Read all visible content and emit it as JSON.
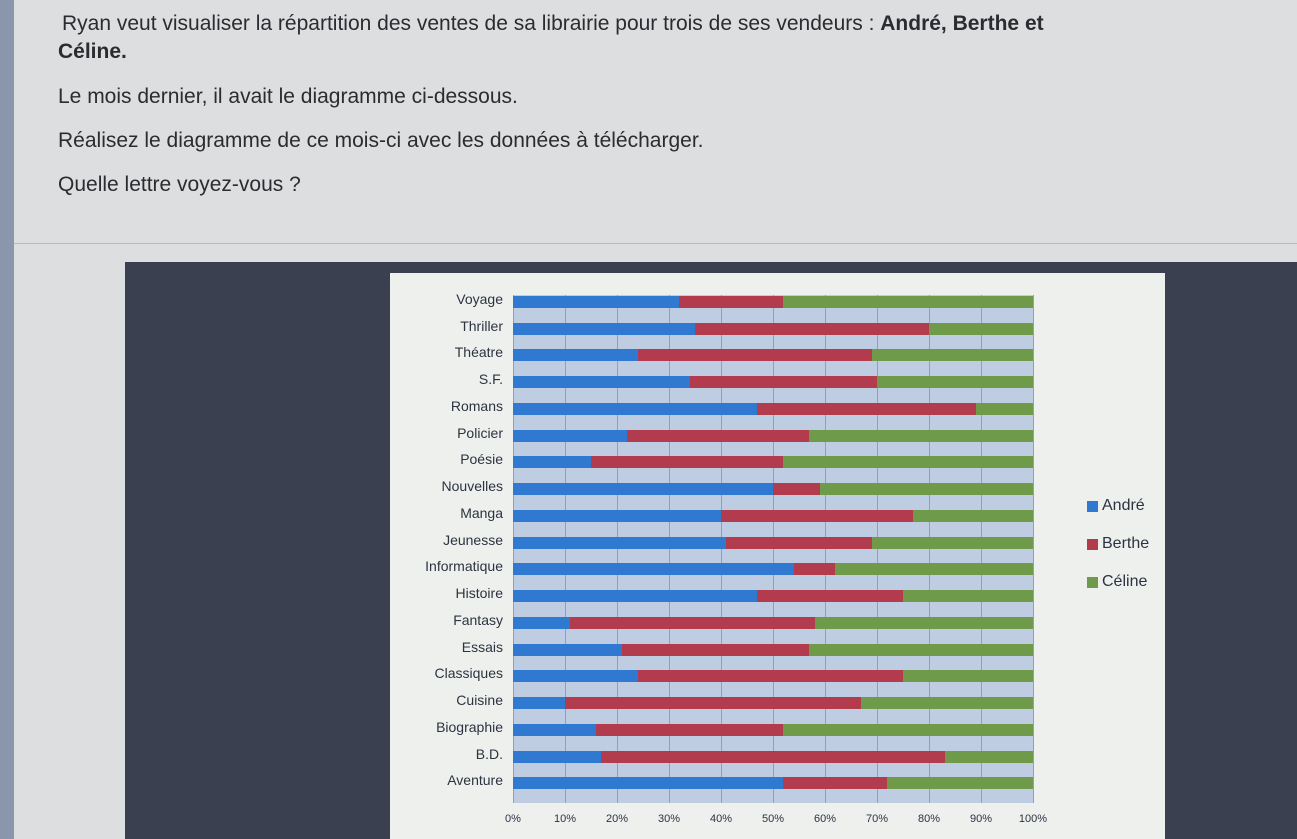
{
  "question": {
    "line1_prefix": "Ryan veut visualiser la répartition des ventes de sa librairie pour trois de ses vendeurs : ",
    "line1_bold": "André, Berthe et",
    "line2_bold": "Céline.",
    "line3": "Le mois dernier, il avait le diagramme ci-dessous.",
    "line4": "Réalisez le diagramme de ce mois-ci avec les données à télécharger.",
    "line5": "Quelle lettre voyez-vous ?"
  },
  "colors": {
    "andre": "#2f7ad0",
    "berthe": "#b23c4d",
    "celine": "#6e9a4a"
  },
  "chart_data": {
    "type": "bar",
    "subtype": "stacked-100-horizontal",
    "title": "",
    "xlabel": "",
    "ylabel": "",
    "xlim": [
      0,
      100
    ],
    "grid": true,
    "legend_position": "right",
    "x_ticks": [
      "0%",
      "10%",
      "20%",
      "30%",
      "40%",
      "50%",
      "60%",
      "70%",
      "80%",
      "90%",
      "100%"
    ],
    "categories": [
      "Voyage",
      "Thriller",
      "Théatre",
      "S.F.",
      "Romans",
      "Policier",
      "Poésie",
      "Nouvelles",
      "Manga",
      "Jeunesse",
      "Informatique",
      "Histoire",
      "Fantasy",
      "Essais",
      "Classiques",
      "Cuisine",
      "Biographie",
      "B.D.",
      "Aventure"
    ],
    "series": [
      {
        "name": "André",
        "values": [
          32,
          35,
          24,
          34,
          47,
          22,
          15,
          50,
          40,
          41,
          54,
          47,
          11,
          21,
          24,
          10,
          16,
          17,
          52
        ]
      },
      {
        "name": "Berthe",
        "values": [
          20,
          45,
          45,
          36,
          42,
          35,
          37,
          9,
          37,
          28,
          8,
          28,
          47,
          36,
          51,
          57,
          36,
          66,
          20
        ]
      },
      {
        "name": "Céline",
        "values": [
          48,
          20,
          31,
          30,
          11,
          43,
          48,
          41,
          23,
          31,
          38,
          25,
          42,
          43,
          25,
          33,
          48,
          17,
          28
        ]
      }
    ]
  },
  "legend": {
    "items": [
      "André",
      "Berthe",
      "Céline"
    ]
  }
}
